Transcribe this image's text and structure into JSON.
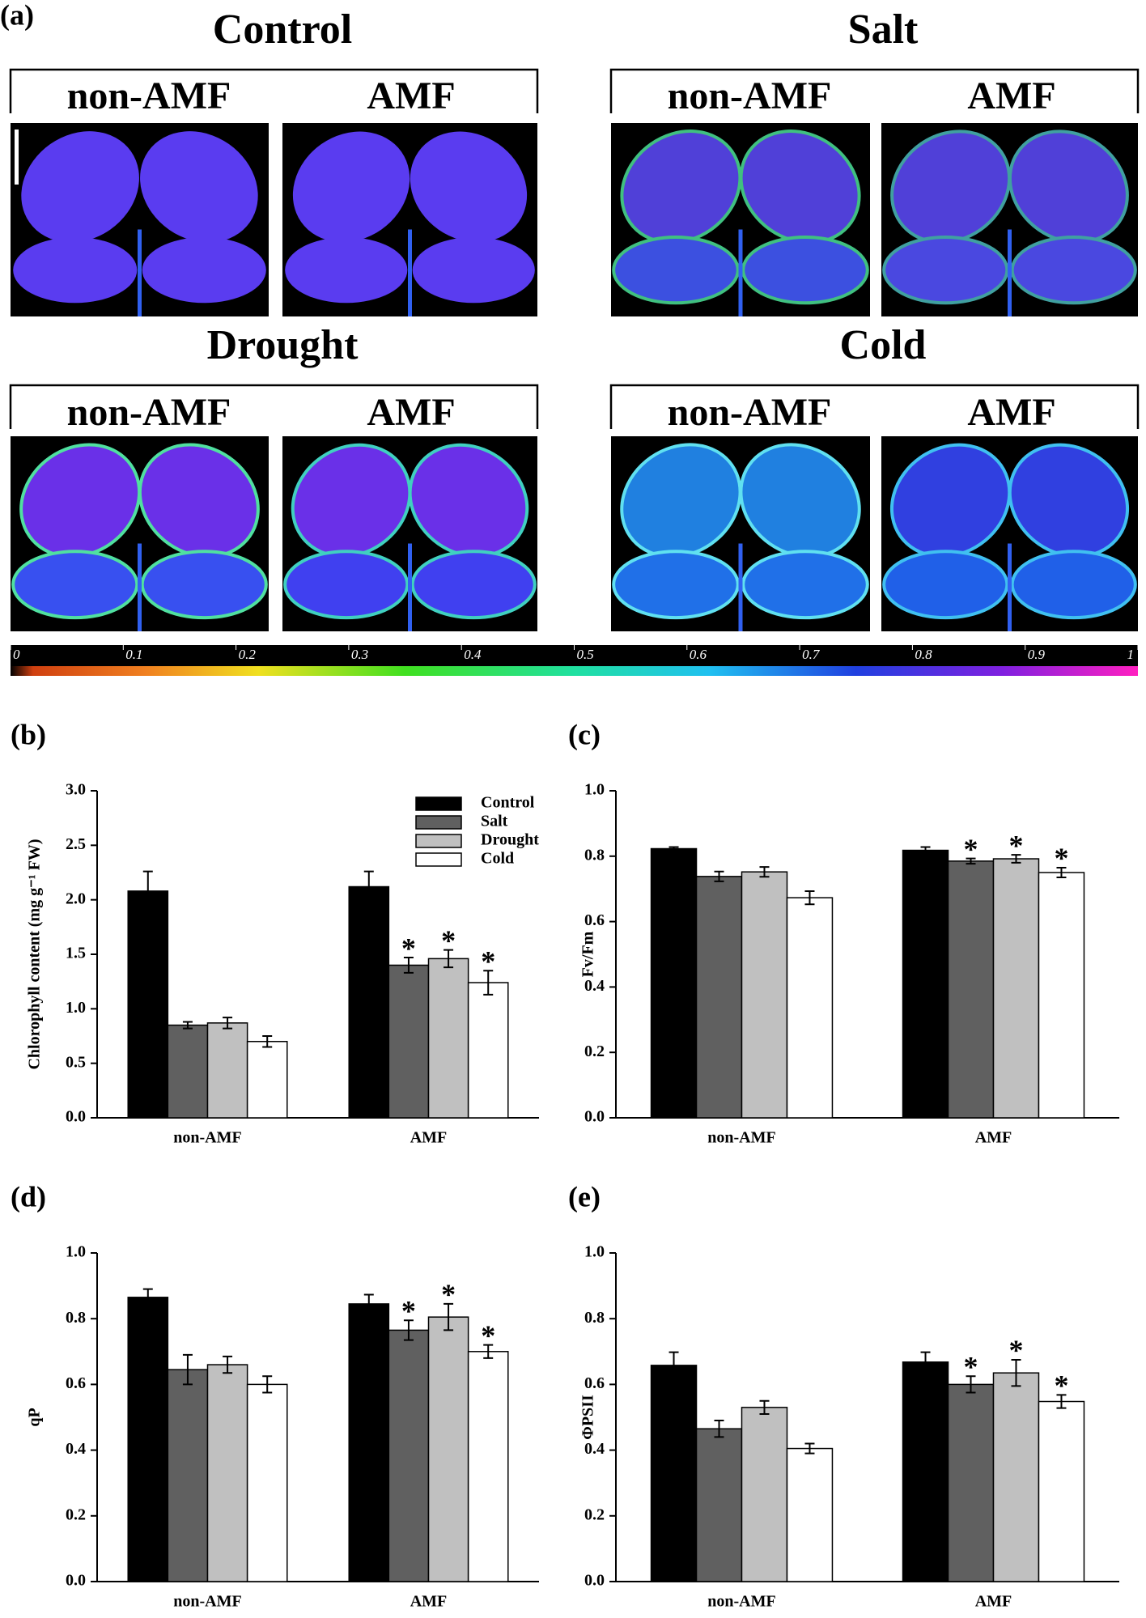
{
  "panel_a": {
    "label": "(a)",
    "groups": [
      {
        "title": "Control",
        "left": "non-AMF",
        "right": "AMF"
      },
      {
        "title": "Salt",
        "left": "non-AMF",
        "right": "AMF"
      },
      {
        "title": "Drought",
        "left": "non-AMF",
        "right": "AMF"
      },
      {
        "title": "Cold",
        "left": "non-AMF",
        "right": "AMF"
      }
    ],
    "colorbar_ticks": [
      0,
      0.1,
      0.2,
      0.3,
      0.4,
      0.5,
      0.6,
      0.7,
      0.8,
      0.9,
      1
    ]
  },
  "chart_data": [
    {
      "type": "bar",
      "label": "(b)",
      "y_label": "Chlorophyll content (mg g⁻¹ FW)",
      "categories": [
        "non-AMF",
        "AMF"
      ],
      "series": [
        {
          "name": "Control",
          "color": "#000000",
          "values": [
            2.08,
            2.12
          ],
          "errors": [
            0.18,
            0.14
          ],
          "annotations": [
            null,
            null
          ]
        },
        {
          "name": "Salt",
          "color": "#606060",
          "values": [
            0.85,
            1.4
          ],
          "errors": [
            0.03,
            0.07
          ],
          "annotations": [
            null,
            "*"
          ]
        },
        {
          "name": "Drought",
          "color": "#c0c0c0",
          "values": [
            0.87,
            1.46
          ],
          "errors": [
            0.05,
            0.08
          ],
          "annotations": [
            null,
            "*"
          ]
        },
        {
          "name": "Cold",
          "color": "#ffffff",
          "values": [
            0.7,
            1.24
          ],
          "errors": [
            0.05,
            0.11
          ],
          "annotations": [
            null,
            "*"
          ]
        }
      ],
      "ylim": [
        0,
        3
      ],
      "yticks": [
        {
          "value": 0,
          "label": "0.0"
        },
        0.5,
        {
          "value": 1,
          "label": "1.0"
        },
        1.5,
        {
          "value": 2,
          "label": "2.0"
        },
        2.5,
        {
          "value": 3,
          "label": "3.0"
        }
      ],
      "legend": "top-right"
    },
    {
      "type": "bar",
      "label": "(c)",
      "y_label": "Fv/Fm",
      "categories": [
        "non-AMF",
        "AMF"
      ],
      "series": [
        {
          "name": "Control",
          "color": "#000000",
          "values": [
            0.823,
            0.818
          ],
          "errors": [
            0.005,
            0.01
          ],
          "annotations": [
            null,
            null
          ]
        },
        {
          "name": "Salt",
          "color": "#606060",
          "values": [
            0.738,
            0.785
          ],
          "errors": [
            0.015,
            0.008
          ],
          "annotations": [
            null,
            "*"
          ]
        },
        {
          "name": "Drought",
          "color": "#c0c0c0",
          "values": [
            0.752,
            0.792
          ],
          "errors": [
            0.015,
            0.012
          ],
          "annotations": [
            null,
            "*"
          ]
        },
        {
          "name": "Cold",
          "color": "#ffffff",
          "values": [
            0.673,
            0.75
          ],
          "errors": [
            0.02,
            0.015
          ],
          "annotations": [
            null,
            "*"
          ]
        }
      ],
      "ylim": [
        0,
        1
      ],
      "yticks": [
        {
          "value": 0,
          "label": "0.0"
        },
        0.2,
        0.4,
        0.6,
        0.8,
        {
          "value": 1,
          "label": "1.0"
        }
      ]
    },
    {
      "type": "bar",
      "label": "(d)",
      "y_label": "qP",
      "categories": [
        "non-AMF",
        "AMF"
      ],
      "series": [
        {
          "name": "Control",
          "color": "#000000",
          "values": [
            0.865,
            0.845
          ],
          "errors": [
            0.025,
            0.028
          ],
          "annotations": [
            null,
            null
          ]
        },
        {
          "name": "Salt",
          "color": "#606060",
          "values": [
            0.645,
            0.765
          ],
          "errors": [
            0.045,
            0.03
          ],
          "annotations": [
            null,
            "*"
          ]
        },
        {
          "name": "Drought",
          "color": "#c0c0c0",
          "values": [
            0.66,
            0.805
          ],
          "errors": [
            0.025,
            0.04
          ],
          "annotations": [
            null,
            "*"
          ]
        },
        {
          "name": "Cold",
          "color": "#ffffff",
          "values": [
            0.6,
            0.7
          ],
          "errors": [
            0.025,
            0.02
          ],
          "annotations": [
            null,
            "*"
          ]
        }
      ],
      "ylim": [
        0,
        1
      ],
      "yticks": [
        {
          "value": 0,
          "label": "0.0"
        },
        0.2,
        0.4,
        0.6,
        0.8,
        {
          "value": 1,
          "label": "1.0"
        }
      ]
    },
    {
      "type": "bar",
      "label": "(e)",
      "y_label": "ΦPSII",
      "categories": [
        "non-AMF",
        "AMF"
      ],
      "series": [
        {
          "name": "Control",
          "color": "#000000",
          "values": [
            0.658,
            0.668
          ],
          "errors": [
            0.04,
            0.03
          ],
          "annotations": [
            null,
            null
          ]
        },
        {
          "name": "Salt",
          "color": "#606060",
          "values": [
            0.465,
            0.6
          ],
          "errors": [
            0.025,
            0.025
          ],
          "annotations": [
            null,
            "*"
          ]
        },
        {
          "name": "Drought",
          "color": "#c0c0c0",
          "values": [
            0.53,
            0.635
          ],
          "errors": [
            0.02,
            0.04
          ],
          "annotations": [
            null,
            "*"
          ]
        },
        {
          "name": "Cold",
          "color": "#ffffff",
          "values": [
            0.405,
            0.548
          ],
          "errors": [
            0.015,
            0.02
          ],
          "annotations": [
            null,
            "*"
          ]
        }
      ],
      "ylim": [
        0,
        1
      ],
      "yticks": [
        {
          "value": 0,
          "label": "0.0"
        },
        0.2,
        0.4,
        0.6,
        0.8,
        {
          "value": 1,
          "label": "1.0"
        }
      ]
    }
  ]
}
